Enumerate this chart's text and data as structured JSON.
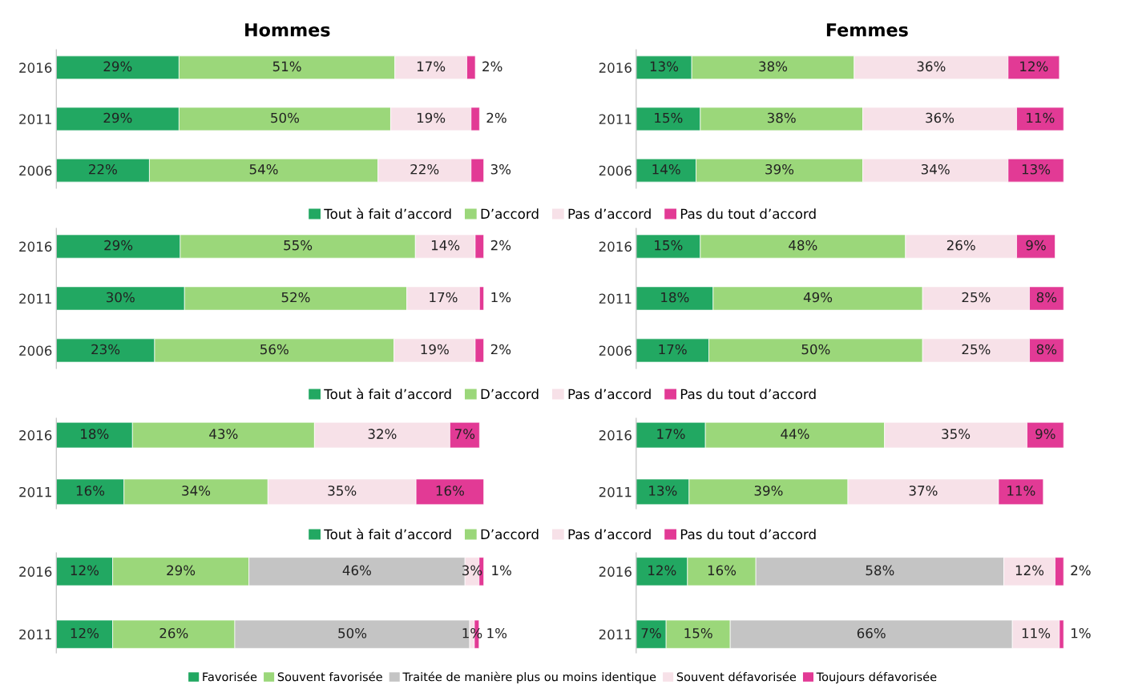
{
  "chart_data": [
    {
      "type": "bar",
      "title": "Hommes",
      "orientation": "horizontal",
      "stacked": true,
      "categories": [
        "2016",
        "2011",
        "2006"
      ],
      "legend": "bottom",
      "tick_labels": "y",
      "series": [
        {
          "name": "Tout à fait d’accord",
          "color": "#22a862",
          "values": [
            29,
            29,
            22
          ],
          "value_labels": [
            "29%",
            "29%",
            "22%"
          ]
        },
        {
          "name": "D’accord",
          "color": "#9bd77a",
          "values": [
            51,
            50,
            54
          ],
          "value_labels": [
            "51%",
            "50%",
            "54%"
          ]
        },
        {
          "name": "Pas d’accord",
          "color": "#f7e1e8",
          "values": [
            17,
            19,
            22
          ],
          "value_labels": [
            "17%",
            "19%",
            "22%"
          ]
        },
        {
          "name": "Pas du tout d’accord",
          "color": "#e23a95",
          "values": [
            2,
            2,
            3
          ],
          "value_labels": [
            "2%",
            "2%",
            "3%"
          ]
        }
      ]
    },
    {
      "type": "bar",
      "title": "Femmes",
      "orientation": "horizontal",
      "stacked": true,
      "categories": [
        "2016",
        "2011",
        "2006"
      ],
      "tick_labels": "y",
      "series": [
        {
          "color": "#22a862",
          "values": [
            13,
            15,
            14
          ],
          "value_labels": [
            "13%",
            "15%",
            "14%"
          ]
        },
        {
          "color": "#9bd77a",
          "values": [
            38,
            38,
            39
          ],
          "value_labels": [
            "38%",
            "38%",
            "39%"
          ]
        },
        {
          "color": "#f7e1e8",
          "values": [
            36,
            36,
            34
          ],
          "value_labels": [
            "36%",
            "36%",
            "34%"
          ]
        },
        {
          "color": "#e23a95",
          "values": [
            12,
            11,
            13
          ],
          "value_labels": [
            "12%",
            "11%",
            "13%"
          ]
        }
      ]
    },
    {
      "type": "bar",
      "orientation": "horizontal",
      "stacked": true,
      "categories": [
        "2016",
        "2011",
        "2006"
      ],
      "legend": "bottom",
      "tick_labels": "y",
      "series": [
        {
          "name": "Tout à fait d’accord",
          "color": "#22a862",
          "values": [
            29,
            30,
            23
          ],
          "value_labels": [
            "29%",
            "30%",
            "23%"
          ]
        },
        {
          "name": "D’accord",
          "color": "#9bd77a",
          "values": [
            55,
            52,
            56
          ],
          "value_labels": [
            "55%",
            "52%",
            "56%"
          ]
        },
        {
          "name": "Pas d’accord",
          "color": "#f7e1e8",
          "values": [
            14,
            17,
            19
          ],
          "value_labels": [
            "14%",
            "17%",
            "19%"
          ]
        },
        {
          "name": "Pas du tout d’accord",
          "color": "#e23a95",
          "values": [
            2,
            1,
            2
          ],
          "value_labels": [
            "2%",
            "1%",
            "2%"
          ]
        }
      ]
    },
    {
      "type": "bar",
      "orientation": "horizontal",
      "stacked": true,
      "categories": [
        "2016",
        "2011",
        "2006"
      ],
      "tick_labels": "y",
      "series": [
        {
          "color": "#22a862",
          "values": [
            15,
            18,
            17
          ],
          "value_labels": [
            "15%",
            "18%",
            "17%"
          ]
        },
        {
          "color": "#9bd77a",
          "values": [
            48,
            49,
            50
          ],
          "value_labels": [
            "48%",
            "49%",
            "50%"
          ]
        },
        {
          "color": "#f7e1e8",
          "values": [
            26,
            25,
            25
          ],
          "value_labels": [
            "26%",
            "25%",
            "25%"
          ]
        },
        {
          "color": "#e23a95",
          "values": [
            9,
            8,
            8
          ],
          "value_labels": [
            "9%",
            "8%",
            "8%"
          ]
        }
      ]
    },
    {
      "type": "bar",
      "orientation": "horizontal",
      "stacked": true,
      "categories": [
        "2016",
        "2011"
      ],
      "legend": "bottom",
      "tick_labels": "y",
      "series": [
        {
          "name": "Tout à fait d’accord",
          "color": "#22a862",
          "values": [
            18,
            16
          ],
          "value_labels": [
            "18%",
            "16%"
          ]
        },
        {
          "name": "D’accord",
          "color": "#9bd77a",
          "values": [
            43,
            34
          ],
          "value_labels": [
            "43%",
            "34%"
          ]
        },
        {
          "name": "Pas d’accord",
          "color": "#f7e1e8",
          "values": [
            32,
            35
          ],
          "value_labels": [
            "32%",
            "35%"
          ]
        },
        {
          "name": "Pas du tout d’accord",
          "color": "#e23a95",
          "values": [
            7,
            16
          ],
          "value_labels": [
            "7%",
            "16%"
          ]
        }
      ]
    },
    {
      "type": "bar",
      "orientation": "horizontal",
      "stacked": true,
      "categories": [
        "2016",
        "2011"
      ],
      "tick_labels": "y",
      "series": [
        {
          "color": "#22a862",
          "values": [
            17,
            13
          ],
          "value_labels": [
            "17%",
            "13%"
          ]
        },
        {
          "color": "#9bd77a",
          "values": [
            44,
            39
          ],
          "value_labels": [
            "44%",
            "39%"
          ]
        },
        {
          "color": "#f7e1e8",
          "values": [
            35,
            37
          ],
          "value_labels": [
            "35%",
            "37%"
          ]
        },
        {
          "color": "#e23a95",
          "values": [
            9,
            11
          ],
          "value_labels": [
            "9%",
            "11%"
          ]
        }
      ]
    },
    {
      "type": "bar",
      "orientation": "horizontal",
      "stacked": true,
      "categories": [
        "2016",
        "2011"
      ],
      "legend": "bottom",
      "tick_labels": "y",
      "series": [
        {
          "name": "Favorisée",
          "color": "#22a862",
          "values": [
            12,
            12
          ],
          "value_labels": [
            "12%",
            "12%"
          ]
        },
        {
          "name": "Souvent favorisée",
          "color": "#9bd77a",
          "values": [
            29,
            26
          ],
          "value_labels": [
            "29%",
            "26%"
          ]
        },
        {
          "name": "Traitée de manière plus ou moins identique",
          "color": "#c4c4c4",
          "values": [
            46,
            50
          ],
          "value_labels": [
            "46%",
            "50%"
          ]
        },
        {
          "name": "Souvent défavorisée",
          "color": "#f7e1e8",
          "values": [
            3,
            1
          ],
          "value_labels": [
            "3%",
            "1%"
          ]
        },
        {
          "name": "Toujours défavorisée",
          "color": "#e23a95",
          "values": [
            1,
            1
          ],
          "value_labels": [
            "1%",
            "1%"
          ]
        }
      ]
    },
    {
      "type": "bar",
      "orientation": "horizontal",
      "stacked": true,
      "categories": [
        "2016",
        "2011"
      ],
      "tick_labels": "y",
      "series": [
        {
          "color": "#22a862",
          "values": [
            12,
            7
          ],
          "value_labels": [
            "12%",
            "7%"
          ]
        },
        {
          "color": "#9bd77a",
          "values": [
            16,
            15
          ],
          "value_labels": [
            "16%",
            "15%"
          ]
        },
        {
          "color": "#c4c4c4",
          "values": [
            58,
            66
          ],
          "value_labels": [
            "58%",
            "66%"
          ]
        },
        {
          "color": "#f7e1e8",
          "values": [
            12,
            11
          ],
          "value_labels": [
            "12%",
            "11%"
          ]
        },
        {
          "color": "#e23a95",
          "values": [
            2,
            1
          ],
          "value_labels": [
            "2%",
            "1%"
          ]
        }
      ]
    }
  ]
}
